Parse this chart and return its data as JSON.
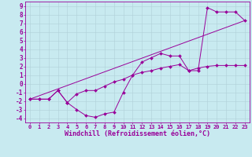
{
  "title": "",
  "xlabel": "Windchill (Refroidissement éolien,°C)",
  "ylabel": "",
  "bg_color": "#c8eaf0",
  "line_color": "#990099",
  "grid_color": "#b0d0d8",
  "xlim": [
    -0.5,
    23.5
  ],
  "ylim": [
    -4.5,
    9.5
  ],
  "xticks": [
    0,
    1,
    2,
    3,
    4,
    5,
    6,
    7,
    8,
    9,
    10,
    11,
    12,
    13,
    14,
    15,
    16,
    17,
    18,
    19,
    20,
    21,
    22,
    23
  ],
  "yticks": [
    -4,
    -3,
    -2,
    -1,
    0,
    1,
    2,
    3,
    4,
    5,
    6,
    7,
    8,
    9
  ],
  "curve1_x": [
    0,
    1,
    2,
    3,
    4,
    5,
    6,
    7,
    8,
    9,
    10,
    11,
    12,
    13,
    14,
    15,
    16,
    17,
    18,
    19,
    20,
    21,
    22,
    23
  ],
  "curve1_y": [
    -1.8,
    -1.8,
    -1.8,
    -0.8,
    -2.2,
    -3.0,
    -3.7,
    -3.9,
    -3.5,
    -3.3,
    -1.0,
    1.0,
    2.5,
    3.0,
    3.5,
    3.2,
    3.2,
    1.5,
    1.5,
    8.8,
    8.3,
    8.3,
    8.3,
    7.3
  ],
  "curve2_x": [
    0,
    1,
    2,
    3,
    4,
    5,
    6,
    7,
    8,
    9,
    10,
    11,
    12,
    13,
    14,
    15,
    16,
    17,
    18,
    19,
    20,
    21,
    22,
    23
  ],
  "curve2_y": [
    -1.8,
    -1.8,
    -1.8,
    -0.8,
    -2.2,
    -1.2,
    -0.8,
    -0.8,
    -0.3,
    0.2,
    0.5,
    1.0,
    1.3,
    1.5,
    1.8,
    2.0,
    2.2,
    1.5,
    1.8,
    2.0,
    2.1,
    2.1,
    2.1,
    2.1
  ],
  "curve3_x": [
    0,
    23
  ],
  "curve3_y": [
    -1.8,
    7.3
  ],
  "marker_size": 2,
  "tick_fontsize": 5,
  "xlabel_fontsize": 6
}
